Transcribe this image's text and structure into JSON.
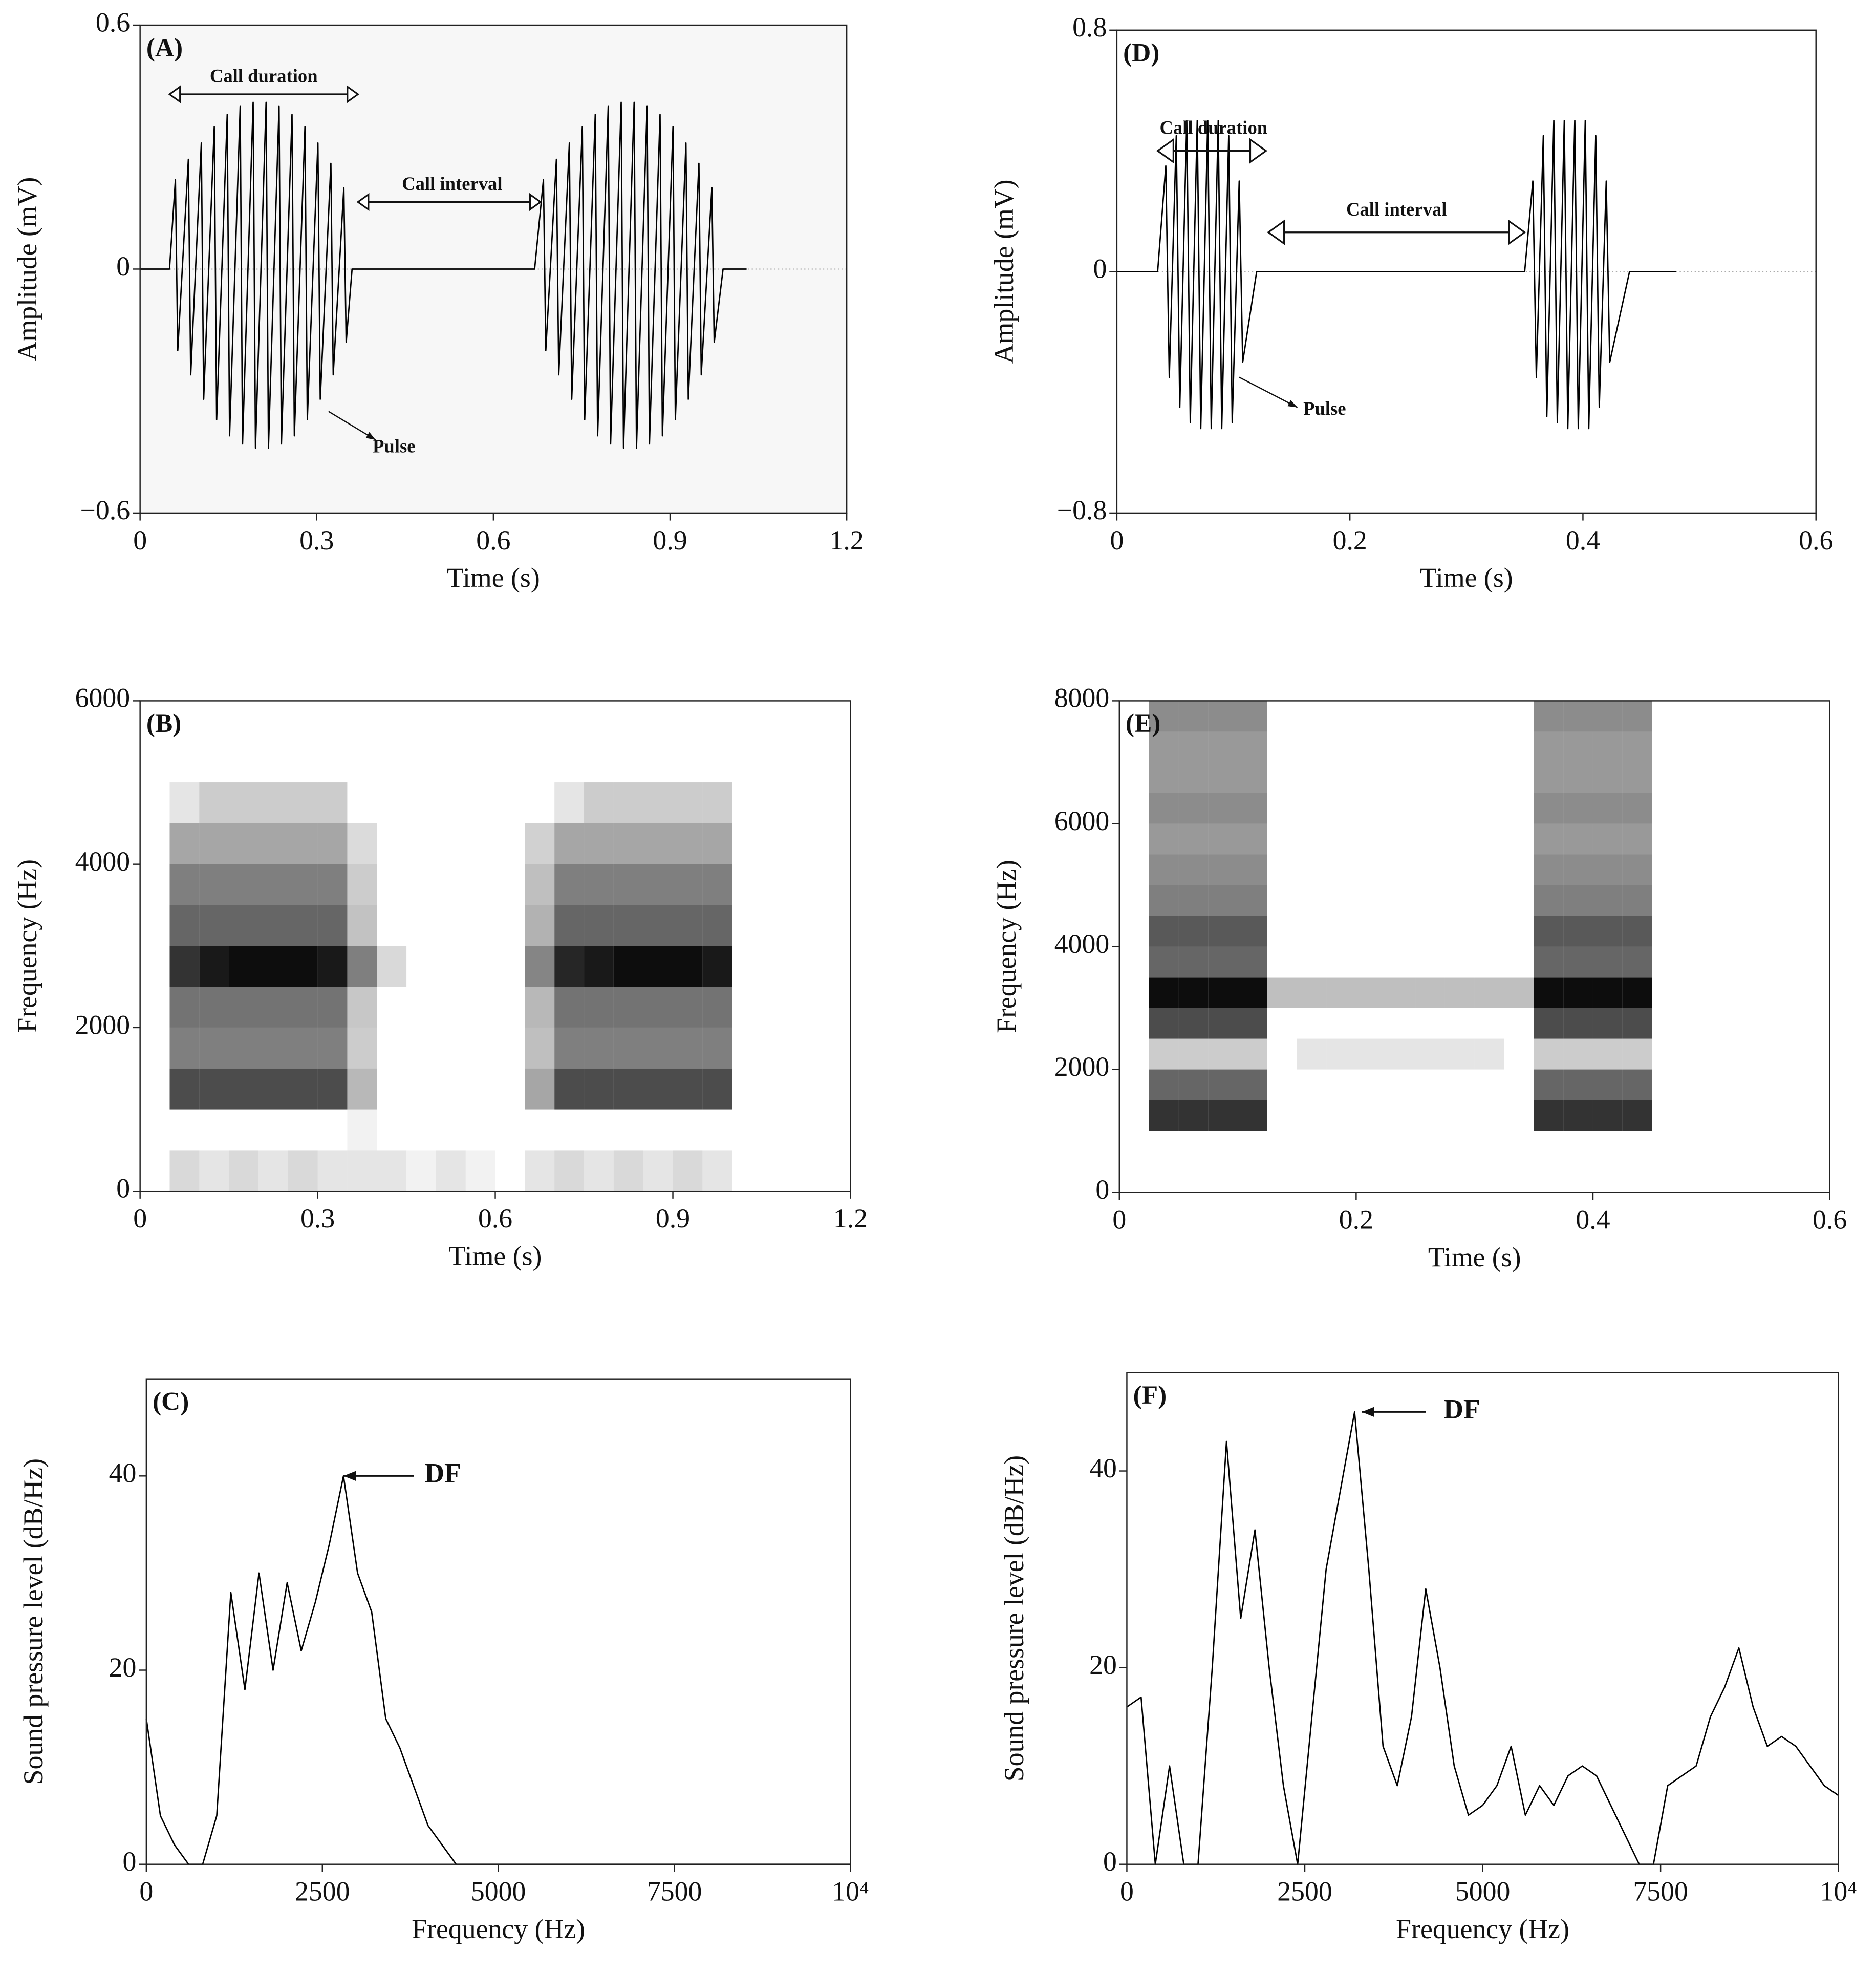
{
  "chart_data": [
    {
      "type": "line",
      "label": "(A)",
      "xlabel": "Time (s)",
      "ylabel": "Amplitude (mV)",
      "color": "#000000",
      "background": "#f7f7f7",
      "xlim": [
        0,
        1.2
      ],
      "xticks": [
        0,
        0.3,
        0.6,
        0.9,
        1.2
      ],
      "ylim": [
        -0.6,
        0.6
      ],
      "yticks": [
        {
          "value": -0.6,
          "label": "−0.6"
        },
        0,
        0.6
      ],
      "annotations": [
        "Call duration",
        "Call interval",
        "Pulse"
      ],
      "x": [
        0,
        0.05,
        0.06,
        0.064,
        0.082,
        0.086,
        0.104,
        0.108,
        0.126,
        0.13,
        0.148,
        0.152,
        0.17,
        0.174,
        0.192,
        0.196,
        0.214,
        0.218,
        0.236,
        0.24,
        0.258,
        0.262,
        0.28,
        0.284,
        0.302,
        0.306,
        0.324,
        0.328,
        0.346,
        0.35,
        0.36,
        0.67,
        0.685,
        0.689,
        0.707,
        0.711,
        0.729,
        0.733,
        0.751,
        0.755,
        0.773,
        0.777,
        0.795,
        0.799,
        0.817,
        0.821,
        0.839,
        0.843,
        0.861,
        0.865,
        0.883,
        0.887,
        0.905,
        0.909,
        0.927,
        0.931,
        0.949,
        0.953,
        0.971,
        0.975,
        0.99,
        1.03
      ],
      "values": [
        0,
        0,
        0.22,
        -0.2,
        0.27,
        -0.26,
        0.31,
        -0.32,
        0.35,
        -0.37,
        0.38,
        -0.41,
        0.4,
        -0.43,
        0.41,
        -0.44,
        0.41,
        -0.44,
        0.4,
        -0.43,
        0.38,
        -0.41,
        0.35,
        -0.37,
        0.31,
        -0.32,
        0.26,
        -0.26,
        0.2,
        -0.18,
        0,
        0,
        0.22,
        -0.2,
        0.27,
        -0.26,
        0.31,
        -0.32,
        0.35,
        -0.37,
        0.38,
        -0.41,
        0.4,
        -0.43,
        0.41,
        -0.44,
        0.41,
        -0.44,
        0.4,
        -0.43,
        0.38,
        -0.41,
        0.35,
        -0.37,
        0.31,
        -0.32,
        0.26,
        -0.26,
        0.2,
        -0.18,
        0,
        0
      ]
    },
    {
      "type": "heatmap",
      "label": "(B)",
      "xlabel": "Time (s)",
      "ylabel": "Frequency (Hz)",
      "color": "#000000",
      "xlim": [
        0,
        1.2
      ],
      "xticks": [
        0,
        0.3,
        0.6,
        0.9,
        1.2
      ],
      "ylim": [
        0,
        6000
      ],
      "yticks": [
        0,
        2000,
        4000,
        6000
      ],
      "xbins": [
        0,
        0.05,
        0.1,
        0.15,
        0.2,
        0.25,
        0.3,
        0.35,
        0.4,
        0.45,
        0.5,
        0.55,
        0.6,
        0.65,
        0.7,
        0.75,
        0.8,
        0.85,
        0.9,
        0.95,
        1.0,
        1.05,
        1.1,
        1.15,
        1.2
      ],
      "ybins": [
        0,
        500,
        1000,
        1500,
        2000,
        2500,
        3000,
        3500,
        4000,
        4500,
        5000,
        5500,
        6000
      ],
      "values": [
        [
          0,
          0.15,
          0.1,
          0.15,
          0.1,
          0.15,
          0.1,
          0.1,
          0.1,
          0.05,
          0.1,
          0.05,
          0,
          0.1,
          0.15,
          0.1,
          0.15,
          0.1,
          0.15,
          0.1,
          0,
          0,
          0,
          0
        ],
        [
          0,
          0,
          0,
          0,
          0,
          0,
          0,
          0.05,
          0,
          0,
          0,
          0,
          0,
          0,
          0,
          0,
          0,
          0,
          0,
          0,
          0,
          0,
          0,
          0
        ],
        [
          0,
          0.7,
          0.7,
          0.7,
          0.7,
          0.7,
          0.7,
          0.28,
          0,
          0,
          0,
          0,
          0,
          0.35,
          0.7,
          0.7,
          0.7,
          0.7,
          0.7,
          0.7,
          0,
          0,
          0,
          0
        ],
        [
          0,
          0.5,
          0.5,
          0.5,
          0.5,
          0.5,
          0.5,
          0.2,
          0,
          0,
          0,
          0,
          0,
          0.25,
          0.5,
          0.5,
          0.5,
          0.5,
          0.5,
          0.5,
          0,
          0,
          0,
          0
        ],
        [
          0,
          0.55,
          0.55,
          0.55,
          0.55,
          0.55,
          0.55,
          0.22,
          0,
          0,
          0,
          0,
          0,
          0.28,
          0.55,
          0.55,
          0.55,
          0.55,
          0.55,
          0.55,
          0,
          0,
          0,
          0
        ],
        [
          0,
          0.8,
          0.9,
          0.95,
          0.95,
          0.95,
          0.9,
          0.5,
          0.15,
          0,
          0,
          0,
          0,
          0.48,
          0.85,
          0.9,
          0.95,
          0.95,
          0.95,
          0.9,
          0,
          0,
          0,
          0
        ],
        [
          0,
          0.6,
          0.6,
          0.6,
          0.6,
          0.6,
          0.6,
          0.24,
          0,
          0,
          0,
          0,
          0,
          0.3,
          0.6,
          0.6,
          0.6,
          0.6,
          0.6,
          0.6,
          0,
          0,
          0,
          0
        ],
        [
          0,
          0.5,
          0.5,
          0.5,
          0.5,
          0.5,
          0.5,
          0.2,
          0,
          0,
          0,
          0,
          0,
          0.25,
          0.5,
          0.5,
          0.5,
          0.5,
          0.5,
          0.5,
          0,
          0,
          0,
          0
        ],
        [
          0,
          0.35,
          0.35,
          0.35,
          0.35,
          0.35,
          0.35,
          0.14,
          0,
          0,
          0,
          0,
          0,
          0.18,
          0.35,
          0.35,
          0.35,
          0.35,
          0.35,
          0.35,
          0,
          0,
          0,
          0
        ],
        [
          0,
          0.1,
          0.2,
          0.2,
          0.2,
          0.2,
          0.2,
          0,
          0,
          0,
          0,
          0,
          0,
          0,
          0.1,
          0.2,
          0.2,
          0.2,
          0.2,
          0.2,
          0,
          0,
          0,
          0
        ],
        [
          0,
          0,
          0,
          0,
          0,
          0,
          0,
          0,
          0,
          0,
          0,
          0,
          0,
          0,
          0,
          0,
          0,
          0,
          0,
          0,
          0,
          0,
          0,
          0
        ],
        [
          0,
          0,
          0,
          0,
          0,
          0,
          0,
          0,
          0,
          0,
          0,
          0,
          0,
          0,
          0,
          0,
          0,
          0,
          0,
          0,
          0,
          0,
          0,
          0
        ]
      ]
    },
    {
      "type": "line",
      "label": "(C)",
      "xlabel": "Frequency (Hz)",
      "ylabel": "Sound pressure level (dB/Hz)",
      "color": "#000000",
      "xlim": [
        0,
        10000
      ],
      "xticks": [
        0,
        2500,
        5000,
        7500,
        {
          "value": 10000,
          "label": "10⁴"
        }
      ],
      "ylim": [
        0,
        50
      ],
      "yticks": [
        0,
        20,
        40
      ],
      "annotations": [
        "DF"
      ],
      "x": [
        0,
        200,
        400,
        600,
        800,
        1000,
        1200,
        1400,
        1600,
        1800,
        2000,
        2200,
        2400,
        2600,
        2800,
        3000,
        3200,
        3400,
        3600,
        3800,
        4000,
        4200,
        4400,
        4600,
        4800,
        5000,
        5200,
        5400,
        5600,
        5800,
        6000,
        6200,
        6400,
        6600,
        6800,
        7000,
        7200,
        7400,
        7600,
        7800,
        8000,
        8200,
        8400,
        8600,
        8800,
        9000,
        9200,
        9400,
        9600,
        9800,
        10000
      ],
      "values": [
        15,
        5,
        2,
        0,
        0,
        5,
        28,
        18,
        30,
        20,
        29,
        22,
        27,
        33,
        40,
        30,
        26,
        15,
        12,
        8,
        4,
        2,
        0,
        0,
        0,
        0,
        0,
        0,
        0,
        0,
        0,
        0,
        0,
        0,
        0,
        0,
        0,
        0,
        0,
        0,
        0,
        0,
        0,
        0,
        0,
        0,
        0,
        0,
        0,
        0,
        0
      ]
    },
    {
      "type": "line",
      "label": "(D)",
      "xlabel": "Time (s)",
      "ylabel": "Amplitude (mV)",
      "color": "#000000",
      "background": "#ffffff",
      "xlim": [
        0,
        0.6
      ],
      "xticks": [
        0,
        0.2,
        0.4,
        0.6
      ],
      "ylim": [
        -0.8,
        0.8
      ],
      "yticks": [
        {
          "value": -0.8,
          "label": "−0.8"
        },
        0,
        0.8
      ],
      "annotations": [
        "Call duration",
        "Call interval",
        "Pulse"
      ],
      "x": [
        0,
        0.035,
        0.042,
        0.045,
        0.051,
        0.054,
        0.06,
        0.063,
        0.069,
        0.072,
        0.078,
        0.081,
        0.087,
        0.09,
        0.096,
        0.099,
        0.105,
        0.108,
        0.12,
        0.35,
        0.357,
        0.36,
        0.366,
        0.369,
        0.375,
        0.378,
        0.384,
        0.387,
        0.393,
        0.396,
        0.402,
        0.405,
        0.411,
        0.414,
        0.42,
        0.423,
        0.44,
        0.48
      ],
      "values": [
        0,
        0,
        0.35,
        -0.35,
        0.45,
        -0.45,
        0.5,
        -0.5,
        0.5,
        -0.52,
        0.5,
        -0.52,
        0.5,
        -0.52,
        0.45,
        -0.5,
        0.3,
        -0.3,
        0,
        0,
        0.3,
        -0.35,
        0.45,
        -0.48,
        0.5,
        -0.5,
        0.5,
        -0.52,
        0.5,
        -0.52,
        0.5,
        -0.52,
        0.45,
        -0.45,
        0.3,
        -0.3,
        0,
        0
      ]
    },
    {
      "type": "heatmap",
      "label": "(E)",
      "xlabel": "Time (s)",
      "ylabel": "Frequency (Hz)",
      "color": "#000000",
      "xlim": [
        0,
        0.6
      ],
      "xticks": [
        0,
        0.2,
        0.4,
        0.6
      ],
      "ylim": [
        0,
        8000
      ],
      "yticks": [
        0,
        2000,
        4000,
        6000,
        8000
      ],
      "xbins": [
        0,
        0.025,
        0.05,
        0.075,
        0.1,
        0.125,
        0.15,
        0.175,
        0.2,
        0.225,
        0.25,
        0.275,
        0.3,
        0.325,
        0.35,
        0.375,
        0.4,
        0.425,
        0.45,
        0.475,
        0.5,
        0.525,
        0.55,
        0.575,
        0.6
      ],
      "ybins": [
        0,
        500,
        1000,
        1500,
        2000,
        2500,
        3000,
        3500,
        4000,
        4500,
        5000,
        5500,
        6000,
        6500,
        7000,
        7500,
        8000
      ],
      "values": [
        [
          0,
          0,
          0,
          0,
          0,
          0,
          0,
          0,
          0,
          0,
          0,
          0,
          0,
          0,
          0,
          0,
          0,
          0,
          0,
          0,
          0,
          0,
          0,
          0
        ],
        [
          0,
          0,
          0,
          0,
          0,
          0,
          0,
          0,
          0,
          0,
          0,
          0,
          0,
          0,
          0,
          0,
          0,
          0,
          0,
          0,
          0,
          0,
          0,
          0
        ],
        [
          0,
          0.8,
          0.8,
          0.8,
          0.8,
          0,
          0,
          0,
          0,
          0,
          0,
          0,
          0,
          0,
          0.8,
          0.8,
          0.8,
          0.8,
          0,
          0,
          0,
          0,
          0,
          0
        ],
        [
          0,
          0.6,
          0.6,
          0.6,
          0.6,
          0,
          0,
          0,
          0,
          0,
          0,
          0,
          0,
          0,
          0.6,
          0.6,
          0.6,
          0.6,
          0,
          0,
          0,
          0,
          0,
          0
        ],
        [
          0,
          0.2,
          0.2,
          0.2,
          0.2,
          0,
          0.1,
          0.1,
          0.1,
          0.1,
          0.1,
          0.1,
          0.1,
          0,
          0.2,
          0.2,
          0.2,
          0.2,
          0,
          0,
          0,
          0,
          0,
          0
        ],
        [
          0,
          0.7,
          0.7,
          0.7,
          0.7,
          0,
          0,
          0,
          0,
          0,
          0,
          0,
          0,
          0,
          0.7,
          0.7,
          0.7,
          0.7,
          0,
          0,
          0,
          0,
          0,
          0
        ],
        [
          0,
          0.95,
          0.95,
          0.95,
          0.95,
          0.25,
          0.25,
          0.25,
          0.25,
          0.25,
          0.25,
          0.25,
          0.25,
          0.25,
          0.95,
          0.95,
          0.95,
          0.95,
          0,
          0,
          0,
          0,
          0,
          0
        ],
        [
          0,
          0.6,
          0.6,
          0.6,
          0.6,
          0,
          0,
          0,
          0,
          0,
          0,
          0,
          0,
          0,
          0.6,
          0.6,
          0.6,
          0.6,
          0,
          0,
          0,
          0,
          0,
          0
        ],
        [
          0,
          0.65,
          0.65,
          0.65,
          0.65,
          0,
          0,
          0,
          0,
          0,
          0,
          0,
          0,
          0,
          0.65,
          0.65,
          0.65,
          0.65,
          0,
          0,
          0,
          0,
          0,
          0
        ],
        [
          0,
          0.5,
          0.5,
          0.5,
          0.5,
          0,
          0,
          0,
          0,
          0,
          0,
          0,
          0,
          0,
          0.5,
          0.5,
          0.5,
          0.5,
          0,
          0,
          0,
          0,
          0,
          0
        ],
        [
          0,
          0.45,
          0.45,
          0.45,
          0.45,
          0,
          0,
          0,
          0,
          0,
          0,
          0,
          0,
          0,
          0.45,
          0.45,
          0.45,
          0.45,
          0,
          0,
          0,
          0,
          0,
          0
        ],
        [
          0,
          0.4,
          0.4,
          0.4,
          0.4,
          0,
          0,
          0,
          0,
          0,
          0,
          0,
          0,
          0,
          0.4,
          0.4,
          0.4,
          0.4,
          0,
          0,
          0,
          0,
          0,
          0
        ],
        [
          0,
          0.45,
          0.45,
          0.45,
          0.45,
          0,
          0,
          0,
          0,
          0,
          0,
          0,
          0,
          0,
          0.45,
          0.45,
          0.45,
          0.45,
          0,
          0,
          0,
          0,
          0,
          0
        ],
        [
          0,
          0.4,
          0.4,
          0.4,
          0.4,
          0,
          0,
          0,
          0,
          0,
          0,
          0,
          0,
          0,
          0.4,
          0.4,
          0.4,
          0.4,
          0,
          0,
          0,
          0,
          0,
          0
        ],
        [
          0,
          0.4,
          0.4,
          0.4,
          0.4,
          0,
          0,
          0,
          0,
          0,
          0,
          0,
          0,
          0,
          0.4,
          0.4,
          0.4,
          0.4,
          0,
          0,
          0,
          0,
          0,
          0
        ],
        [
          0,
          0.45,
          0.45,
          0.45,
          0.45,
          0,
          0,
          0,
          0,
          0,
          0,
          0,
          0,
          0,
          0.45,
          0.45,
          0.45,
          0.45,
          0,
          0,
          0,
          0,
          0,
          0
        ]
      ]
    },
    {
      "type": "line",
      "label": "(F)",
      "xlabel": "Frequency (Hz)",
      "ylabel": "Sound pressure level (dB/Hz)",
      "color": "#000000",
      "xlim": [
        0,
        10000
      ],
      "xticks": [
        0,
        2500,
        5000,
        7500,
        {
          "value": 10000,
          "label": "10⁴"
        }
      ],
      "ylim": [
        0,
        50
      ],
      "yticks": [
        0,
        20,
        40
      ],
      "annotations": [
        "DF"
      ],
      "x": [
        0,
        200,
        400,
        600,
        800,
        1000,
        1200,
        1400,
        1600,
        1800,
        2000,
        2200,
        2400,
        2600,
        2800,
        3000,
        3200,
        3400,
        3600,
        3800,
        4000,
        4200,
        4400,
        4600,
        4800,
        5000,
        5200,
        5400,
        5600,
        5800,
        6000,
        6200,
        6400,
        6600,
        6800,
        7000,
        7200,
        7400,
        7600,
        7800,
        8000,
        8200,
        8400,
        8600,
        8800,
        9000,
        9200,
        9400,
        9600,
        9800,
        10000
      ],
      "values": [
        16,
        17,
        0,
        10,
        0,
        0,
        20,
        43,
        25,
        34,
        20,
        8,
        0,
        15,
        30,
        38,
        46,
        30,
        12,
        8,
        15,
        28,
        20,
        10,
        5,
        6,
        8,
        12,
        5,
        8,
        6,
        9,
        10,
        9,
        6,
        3,
        0,
        0,
        8,
        9,
        10,
        15,
        18,
        22,
        16,
        12,
        13,
        12,
        10,
        8,
        7
      ]
    }
  ]
}
